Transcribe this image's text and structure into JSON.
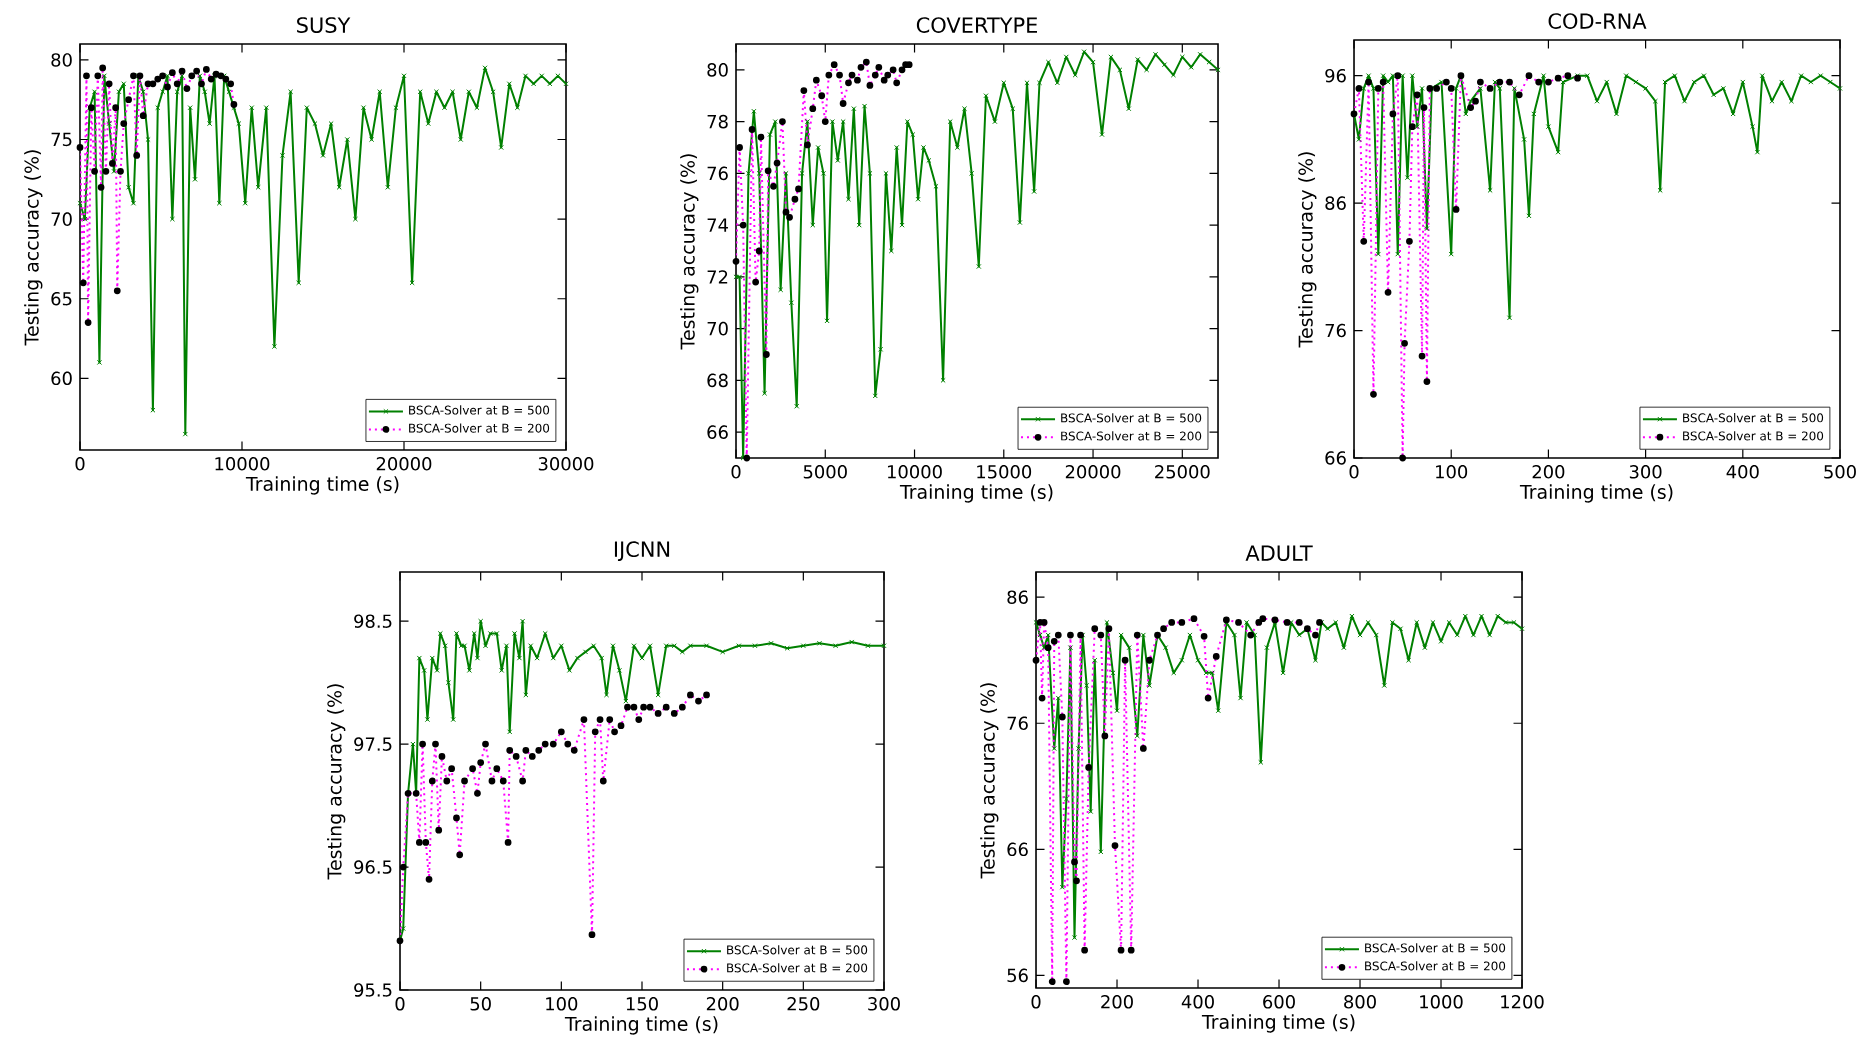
{
  "chart_data": [
    {
      "type": "line",
      "title": "SUSY",
      "xlabel": "Training time (s)",
      "ylabel": "Testing accuracy (%)",
      "xlim": [
        0,
        30000
      ],
      "xticks": [
        0,
        10000,
        20000,
        30000
      ],
      "ylim": [
        55.5,
        81
      ],
      "yticks": [
        60,
        65,
        70,
        75,
        80
      ],
      "legend": "bottom right",
      "series": [
        {
          "name": "BSCA-Solver at B = 500",
          "color": "#008000",
          "marker": "cross",
          "line_style": "solid",
          "x": [
            0,
            300,
            600,
            900,
            1200,
            1500,
            1800,
            2100,
            2400,
            2700,
            3000,
            3300,
            3600,
            3900,
            4200,
            4500,
            4800,
            5100,
            5400,
            5700,
            6000,
            6300,
            6500,
            6800,
            7100,
            7400,
            7700,
            8000,
            8300,
            8600,
            8900,
            9200,
            9500,
            9800,
            10200,
            10600,
            11000,
            11500,
            12000,
            12500,
            13000,
            13500,
            14000,
            14500,
            15000,
            15500,
            16000,
            16500,
            17000,
            17500,
            18000,
            18500,
            19000,
            19500,
            20000,
            20500,
            21000,
            21500,
            22000,
            22500,
            23000,
            23500,
            24000,
            24500,
            25000,
            25500,
            26000,
            26500,
            27000,
            27500,
            28000,
            28500,
            29000,
            29500,
            30000
          ],
          "values": [
            71,
            70,
            77,
            78,
            61,
            79,
            76,
            73,
            78,
            78.5,
            72,
            71,
            79,
            78,
            75,
            58,
            77,
            78,
            79,
            70,
            78,
            79,
            56.5,
            77,
            72.5,
            79,
            78,
            76,
            79,
            71,
            79,
            78,
            77,
            76,
            71,
            77,
            72,
            77,
            62,
            74,
            78,
            66,
            77,
            76,
            74,
            76,
            72,
            75,
            70,
            77,
            75,
            78,
            72,
            77,
            79,
            66,
            78,
            76,
            78,
            77,
            78,
            75,
            78,
            77,
            79.5,
            78,
            74.5,
            78.5,
            77,
            79,
            78.5,
            79,
            78.5,
            79,
            78.5
          ]
        },
        {
          "name": "BSCA-Solver at B = 200",
          "color": "#ff00ff",
          "marker": "circle",
          "line_style": "dotted",
          "x": [
            0,
            200,
            400,
            500,
            700,
            900,
            1100,
            1300,
            1400,
            1600,
            1800,
            2000,
            2200,
            2300,
            2500,
            2700,
            3000,
            3300,
            3500,
            3700,
            3900,
            4200,
            4500,
            4800,
            5100,
            5400,
            5700,
            6000,
            6300,
            6600,
            6900,
            7200,
            7500,
            7800,
            8100,
            8400,
            8700,
            9000,
            9300,
            9500
          ],
          "values": [
            74.5,
            66,
            79,
            63.5,
            77,
            73,
            79,
            72,
            79.5,
            73,
            78.5,
            73.5,
            77,
            65.5,
            73,
            76,
            77.5,
            79,
            74,
            79,
            76.5,
            78.5,
            78.5,
            78.8,
            79,
            78.3,
            79.2,
            78.5,
            79.3,
            78.2,
            79,
            79.3,
            78.5,
            79.4,
            78.8,
            79.1,
            79,
            78.8,
            78.5,
            77.2
          ]
        }
      ]
    },
    {
      "type": "line",
      "title": "COVERTYPE",
      "xlabel": "Training time (s)",
      "ylabel": "Testing accuracy (%)",
      "xlim": [
        0,
        27000
      ],
      "xticks": [
        0,
        5000,
        10000,
        15000,
        20000,
        25000
      ],
      "ylim": [
        65,
        81
      ],
      "yticks": [
        66,
        68,
        70,
        72,
        74,
        76,
        78,
        80
      ],
      "legend": "bottom right",
      "series": [
        {
          "name": "BSCA-Solver at B = 500",
          "color": "#008000",
          "marker": "cross",
          "line_style": "solid",
          "x": [
            0,
            200,
            400,
            700,
            1000,
            1300,
            1600,
            1900,
            2200,
            2500,
            2800,
            3100,
            3400,
            3700,
            4000,
            4300,
            4600,
            4900,
            5100,
            5400,
            5700,
            6000,
            6300,
            6600,
            6900,
            7200,
            7500,
            7800,
            8100,
            8400,
            8700,
            9000,
            9300,
            9600,
            9900,
            10200,
            10500,
            10800,
            11200,
            11600,
            12000,
            12400,
            12800,
            13200,
            13600,
            14000,
            14500,
            15000,
            15500,
            15900,
            16300,
            16700,
            17000,
            17500,
            18000,
            18500,
            19000,
            19500,
            20000,
            20500,
            21000,
            21500,
            22000,
            22500,
            23000,
            23500,
            24000,
            24500,
            25000,
            25500,
            26000,
            26500,
            27000
          ],
          "values": [
            72,
            72,
            65,
            76,
            78.4,
            76,
            67.5,
            77.5,
            78,
            71.5,
            76,
            71,
            67,
            76,
            78,
            74,
            77,
            76,
            70.3,
            78,
            76.5,
            78,
            75,
            78.5,
            74,
            78.6,
            76,
            67.4,
            69.2,
            76,
            73,
            77,
            74,
            78,
            77.5,
            75,
            77,
            76.5,
            75.5,
            68,
            78,
            77,
            78.5,
            76,
            72.4,
            79,
            78,
            79.5,
            78.5,
            74.1,
            79.5,
            75.3,
            79.5,
            80.3,
            79.5,
            80.5,
            79.8,
            80.7,
            80.3,
            77.5,
            80.5,
            80,
            78.5,
            80.4,
            80,
            80.6,
            80.2,
            79.8,
            80.5,
            80.1,
            80.6,
            80.3,
            80
          ]
        },
        {
          "name": "BSCA-Solver at B = 200",
          "color": "#ff00ff",
          "marker": "circle",
          "line_style": "dotted",
          "x": [
            0,
            200,
            400,
            600,
            900,
            1100,
            1300,
            1400,
            1700,
            1800,
            2100,
            2300,
            2600,
            2800,
            3000,
            3300,
            3500,
            3800,
            4000,
            4300,
            4500,
            4800,
            5000,
            5200,
            5500,
            5800,
            6000,
            6300,
            6500,
            6800,
            7000,
            7300,
            7500,
            7800,
            8000,
            8300,
            8500,
            8800,
            9000,
            9300,
            9500,
            9700
          ],
          "values": [
            72.6,
            77,
            74,
            65,
            77.7,
            71.8,
            73,
            77.4,
            69,
            76.1,
            75.5,
            76.4,
            78,
            74.5,
            74.3,
            75,
            75.4,
            79.2,
            77.1,
            78.5,
            79.6,
            79,
            78,
            79.8,
            80.2,
            79.8,
            78.7,
            79.5,
            79.8,
            79.6,
            80.1,
            80.3,
            79.4,
            79.8,
            80.1,
            79.6,
            79.8,
            80,
            79.5,
            80,
            80.2,
            80.2
          ]
        }
      ]
    },
    {
      "type": "line",
      "title": "COD-RNA",
      "xlabel": "Training time (s)",
      "ylabel": "Testing accuracy (%)",
      "xlim": [
        0,
        500
      ],
      "xticks": [
        0,
        100,
        200,
        300,
        400,
        500
      ],
      "ylim": [
        66,
        98.8
      ],
      "yticks": [
        66,
        76,
        86,
        96
      ],
      "legend": "bottom right",
      "series": [
        {
          "name": "BSCA-Solver at B = 500",
          "color": "#008000",
          "marker": "cross",
          "line_style": "solid",
          "x": [
            0,
            5,
            10,
            15,
            20,
            25,
            30,
            35,
            40,
            45,
            50,
            55,
            60,
            65,
            70,
            75,
            80,
            90,
            100,
            105,
            110,
            115,
            120,
            130,
            140,
            145,
            150,
            160,
            165,
            175,
            180,
            185,
            195,
            200,
            210,
            215,
            230,
            240,
            250,
            260,
            270,
            280,
            290,
            300,
            310,
            315,
            320,
            330,
            340,
            350,
            360,
            370,
            380,
            390,
            400,
            410,
            415,
            420,
            430,
            440,
            450,
            460,
            470,
            480,
            490,
            500
          ],
          "values": [
            93,
            91,
            95,
            96,
            95,
            82,
            96,
            95.5,
            96,
            82,
            96,
            88,
            96,
            92,
            95,
            84,
            95,
            95.5,
            82,
            95,
            96,
            93,
            94,
            95,
            87,
            95.5,
            95,
            77,
            95,
            91,
            85,
            93,
            96,
            92,
            90,
            95.5,
            96,
            96,
            94,
            95.5,
            93,
            96,
            95.5,
            95,
            94,
            87,
            95.5,
            96,
            94,
            95.5,
            96,
            94.5,
            95,
            93,
            95.5,
            92,
            90,
            96,
            94,
            95.5,
            94,
            96,
            95.5,
            96,
            95.5,
            95
          ]
        },
        {
          "name": "BSCA-Solver at B = 200",
          "color": "#ff00ff",
          "marker": "circle",
          "line_style": "dotted",
          "x": [
            0,
            5,
            10,
            15,
            20,
            25,
            30,
            35,
            40,
            45,
            50,
            52,
            57,
            60,
            65,
            70,
            72,
            75,
            78,
            85,
            95,
            100,
            105,
            110,
            120,
            125,
            130,
            140,
            150,
            160,
            170,
            180,
            190,
            200,
            210,
            220,
            230
          ],
          "values": [
            93,
            95,
            83,
            95.5,
            71,
            95,
            95.5,
            79,
            93,
            96,
            66,
            75,
            83,
            92,
            94.5,
            74,
            93.5,
            72,
            95,
            95,
            95.5,
            95,
            85.5,
            96,
            93.5,
            94,
            95.5,
            95,
            95.5,
            95.5,
            94.5,
            96,
            95.5,
            95.5,
            95.8,
            96,
            95.8
          ]
        }
      ]
    },
    {
      "type": "line",
      "title": "IJCNN",
      "xlabel": "Training time (s)",
      "ylabel": "Testing accuracy (%)",
      "xlim": [
        0,
        300
      ],
      "xticks": [
        0,
        50,
        100,
        150,
        200,
        250,
        300
      ],
      "ylim": [
        95.5,
        98.9
      ],
      "yticks": [
        95.5,
        96.5,
        97.5,
        98.5
      ],
      "legend": "bottom right",
      "series": [
        {
          "name": "BSCA-Solver at B = 500",
          "color": "#008000",
          "marker": "cross",
          "line_style": "solid",
          "x": [
            0,
            2,
            5,
            8,
            10,
            12,
            15,
            17,
            20,
            23,
            25,
            28,
            30,
            33,
            35,
            38,
            40,
            43,
            46,
            48,
            50,
            53,
            56,
            60,
            63,
            66,
            68,
            71,
            74,
            76,
            78,
            81,
            85,
            90,
            95,
            100,
            105,
            110,
            115,
            120,
            125,
            128,
            132,
            136,
            140,
            145,
            150,
            155,
            160,
            165,
            170,
            175,
            180,
            190,
            200,
            210,
            220,
            230,
            240,
            250,
            260,
            270,
            280,
            290,
            300
          ],
          "values": [
            95.9,
            96,
            97.1,
            97.5,
            97.1,
            98.2,
            98.1,
            97.7,
            98.2,
            98.1,
            98.4,
            98.3,
            98,
            97.7,
            98.4,
            98.3,
            98.3,
            98.1,
            98.4,
            98.2,
            98.5,
            98.3,
            98.4,
            98.4,
            98.1,
            98.3,
            97.6,
            98.4,
            98.2,
            98.5,
            97.9,
            98.3,
            98.2,
            98.4,
            98.2,
            98.3,
            98.1,
            98.2,
            98.25,
            98.3,
            98.2,
            97.9,
            98.3,
            98.1,
            97.85,
            98.3,
            98.2,
            98.3,
            97.9,
            98.3,
            98.3,
            98.25,
            98.3,
            98.3,
            98.25,
            98.3,
            98.3,
            98.32,
            98.28,
            98.3,
            98.32,
            98.3,
            98.33,
            98.3,
            98.3
          ]
        },
        {
          "name": "BSCA-Solver at B = 200",
          "color": "#ff00ff",
          "marker": "circle",
          "line_style": "dotted",
          "x": [
            0,
            2,
            5,
            10,
            12,
            14,
            16,
            18,
            20,
            22,
            24,
            26,
            29,
            32,
            35,
            37,
            40,
            45,
            48,
            50,
            53,
            57,
            60,
            64,
            67,
            68,
            72,
            76,
            78,
            82,
            86,
            90,
            95,
            100,
            104,
            108,
            114,
            119,
            121,
            124,
            126,
            130,
            133,
            137,
            141,
            145,
            148,
            151,
            155,
            160,
            165,
            170,
            175,
            180,
            185,
            190
          ],
          "values": [
            95.9,
            96.5,
            97.1,
            97.1,
            96.7,
            97.5,
            96.7,
            96.4,
            97.2,
            97.5,
            96.8,
            97.4,
            97.2,
            97.3,
            96.9,
            96.6,
            97.2,
            97.3,
            97.1,
            97.35,
            97.5,
            97.2,
            97.3,
            97.2,
            96.7,
            97.45,
            97.4,
            97.2,
            97.45,
            97.4,
            97.45,
            97.5,
            97.5,
            97.6,
            97.5,
            97.45,
            97.7,
            95.95,
            97.6,
            97.7,
            97.2,
            97.7,
            97.6,
            97.65,
            97.8,
            97.8,
            97.7,
            97.8,
            97.8,
            97.75,
            97.8,
            97.75,
            97.8,
            97.9,
            97.85,
            97.9
          ]
        }
      ]
    },
    {
      "type": "line",
      "title": "ADULT",
      "xlabel": "Training time (s)",
      "ylabel": "Testing accuracy (%)",
      "xlim": [
        0,
        1200
      ],
      "xticks": [
        0,
        200,
        400,
        600,
        800,
        1000,
        1200
      ],
      "ylim": [
        55,
        88
      ],
      "yticks": [
        56,
        66,
        76,
        86
      ],
      "legend": "bottom right",
      "series": [
        {
          "name": "BSCA-Solver at B = 500",
          "color": "#008000",
          "marker": "cross",
          "line_style": "solid",
          "x": [
            0,
            10,
            20,
            30,
            45,
            55,
            65,
            75,
            85,
            95,
            105,
            115,
            125,
            135,
            145,
            160,
            175,
            190,
            200,
            210,
            230,
            250,
            265,
            280,
            300,
            320,
            340,
            360,
            380,
            400,
            420,
            435,
            450,
            470,
            490,
            505,
            520,
            540,
            555,
            570,
            590,
            610,
            630,
            650,
            670,
            690,
            705,
            720,
            740,
            760,
            780,
            800,
            820,
            840,
            860,
            880,
            900,
            920,
            940,
            960,
            980,
            1000,
            1020,
            1040,
            1060,
            1080,
            1100,
            1120,
            1140,
            1160,
            1180,
            1200
          ],
          "values": [
            84,
            83,
            82,
            83,
            74,
            78,
            63,
            70,
            82,
            59,
            74,
            83,
            79,
            69,
            81,
            65.8,
            84,
            80,
            77,
            83,
            82,
            75,
            83,
            79,
            83,
            82,
            80,
            81,
            83,
            81,
            80,
            80,
            77,
            84,
            83,
            78,
            84,
            83,
            72.9,
            82,
            84,
            80,
            84,
            83,
            83.5,
            81,
            84,
            83.5,
            84,
            82,
            84.5,
            83,
            84,
            83,
            79,
            84,
            83.5,
            81,
            84,
            82,
            84,
            82.5,
            84,
            83,
            84.5,
            83,
            84.5,
            83,
            84.5,
            84,
            84,
            83.5
          ]
        },
        {
          "name": "BSCA-Solver at B = 200",
          "color": "#ff00ff",
          "marker": "circle",
          "line_style": "dotted",
          "x": [
            0,
            10,
            15,
            20,
            30,
            40,
            45,
            55,
            65,
            75,
            85,
            95,
            100,
            110,
            120,
            130,
            145,
            160,
            170,
            180,
            195,
            210,
            220,
            235,
            250,
            265,
            280,
            300,
            315,
            335,
            360,
            390,
            415,
            425,
            445,
            470,
            500,
            530,
            550,
            560,
            590,
            620,
            650,
            670,
            690,
            700
          ],
          "values": [
            81,
            84,
            78,
            84,
            82,
            55.5,
            82.5,
            83,
            76.5,
            55.5,
            83,
            65,
            63.5,
            83,
            58,
            72.5,
            83.5,
            83,
            75,
            83.5,
            66.3,
            58,
            81,
            58,
            83,
            74,
            81,
            83,
            83.5,
            84,
            84,
            84.3,
            82.9,
            78,
            81.3,
            84.2,
            84,
            83,
            84,
            84.3,
            84.2,
            84,
            84,
            83.5,
            83,
            84
          ]
        }
      ]
    }
  ]
}
